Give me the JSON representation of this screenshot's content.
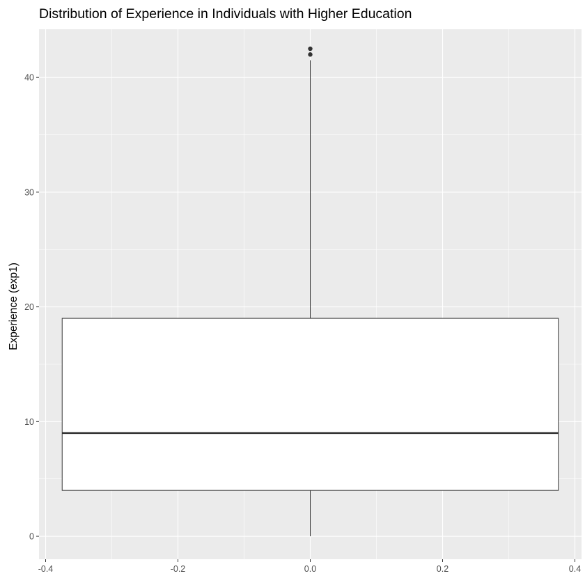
{
  "chart_data": {
    "type": "boxplot",
    "title": "Distribution of Experience in Individuals with Higher Education",
    "xlabel": "",
    "ylabel": "Experience (exp1)",
    "xlim": [
      -0.41,
      0.41
    ],
    "ylim": [
      -2,
      44.2
    ],
    "x_ticks": [
      -0.4,
      -0.2,
      0.0,
      0.2,
      0.4
    ],
    "x_tick_labels": [
      "-0.4",
      "-0.2",
      "0.0",
      "0.2",
      "0.4"
    ],
    "y_ticks": [
      0,
      10,
      20,
      30,
      40
    ],
    "y_tick_labels": [
      "0",
      "10",
      "20",
      "30",
      "40"
    ],
    "grid": true,
    "box": {
      "x_center": 0.0,
      "x_left": -0.375,
      "x_right": 0.375,
      "whisker_low": 0,
      "q1": 4,
      "median": 9,
      "q3": 19,
      "whisker_high": 41.5,
      "outliers": [
        42,
        42.5
      ],
      "fill_color": "#ffffff",
      "line_color": "#333333"
    },
    "panel_background": "#ebebeb",
    "grid_color": "#ffffff"
  }
}
